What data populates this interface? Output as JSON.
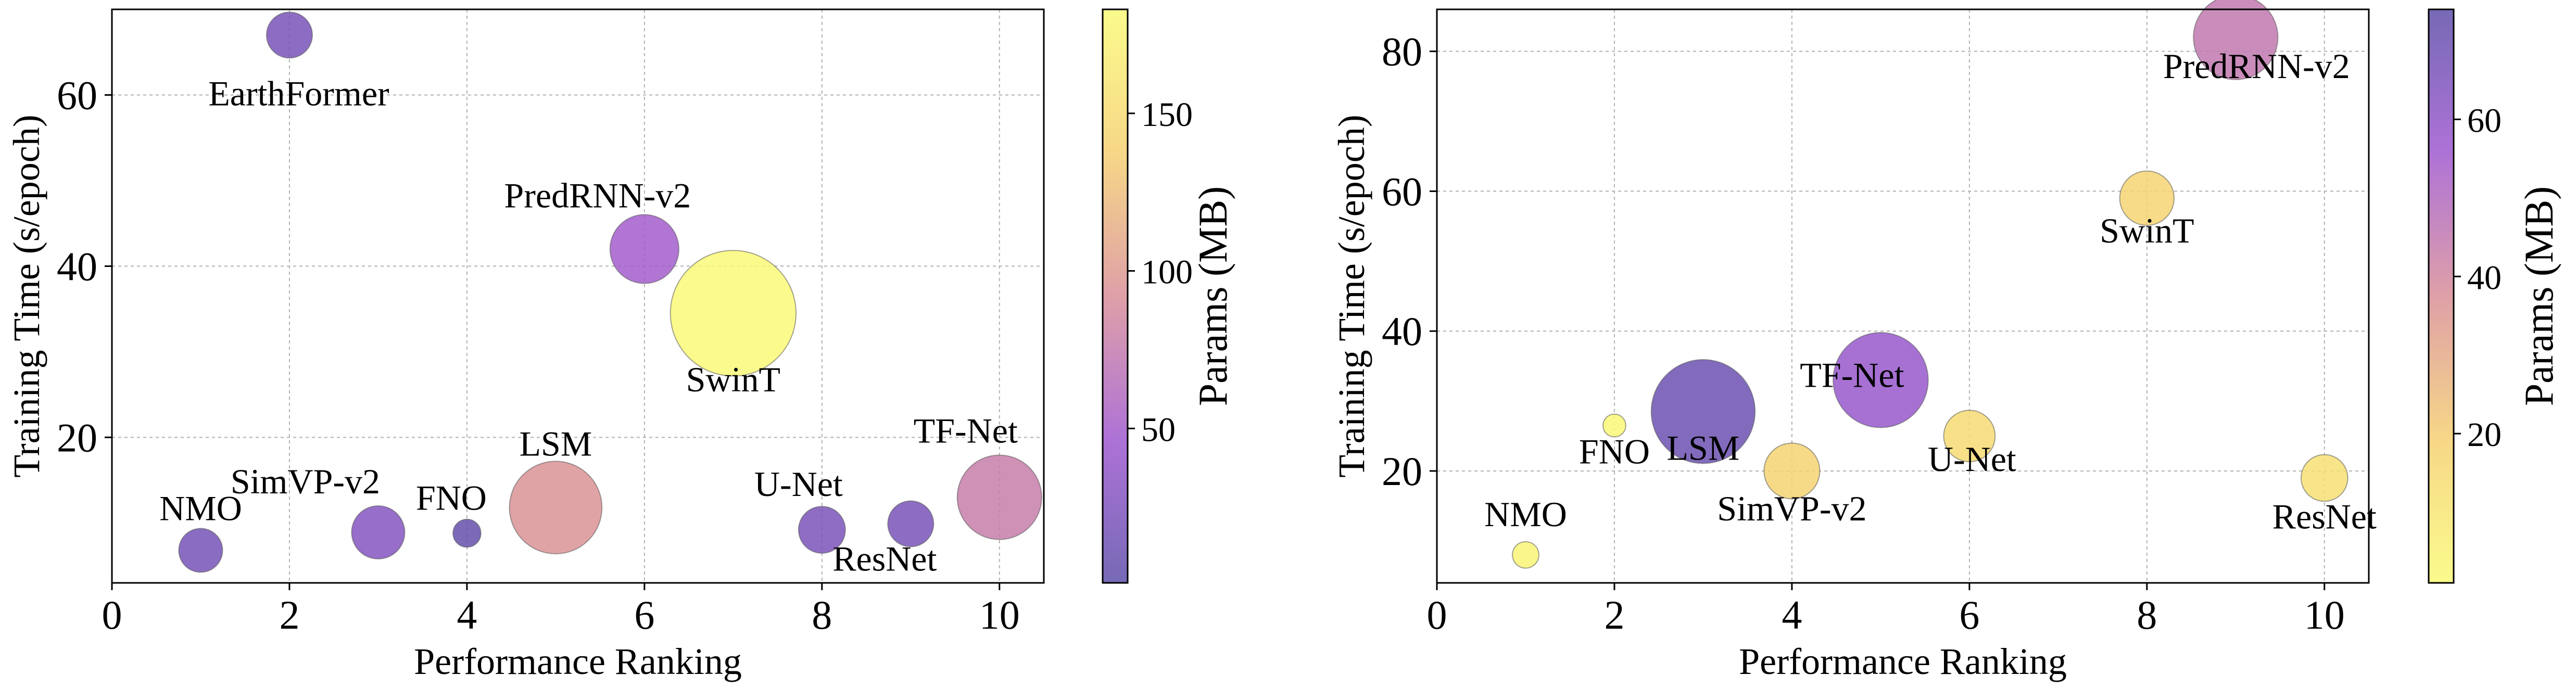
{
  "chart_data": [
    {
      "type": "scatter",
      "xlabel": "Performance Ranking",
      "ylabel": "Training Time (s/epoch)",
      "xlim": [
        0,
        10.5
      ],
      "ylim": [
        3,
        70
      ],
      "xticks": [
        0,
        2,
        4,
        6,
        8,
        10
      ],
      "yticks": [
        20,
        40,
        60
      ],
      "grid": true,
      "colorbar": {
        "label": "Params (MB)",
        "range": [
          1,
          183
        ],
        "ticks": [
          50,
          100,
          150
        ],
        "colormap": "plasma_r",
        "colors_low_to_high": [
          "#5e4fa8",
          "#9f59d0",
          "#d98f98",
          "#f5d072",
          "#fafa78"
        ]
      },
      "points": [
        {
          "name": "NMO",
          "x": 1,
          "y": 6.8,
          "params": 18
        },
        {
          "name": "EarthFormer",
          "x": 2,
          "y": 67,
          "params": 20
        },
        {
          "name": "SimVP-v2",
          "x": 3,
          "y": 8.9,
          "params": 28
        },
        {
          "name": "FNO",
          "x": 4,
          "y": 8.8,
          "params": 6
        },
        {
          "name": "LSM",
          "x": 5,
          "y": 11.8,
          "params": 95
        },
        {
          "name": "PredRNN-v2",
          "x": 6,
          "y": 42,
          "params": 50
        },
        {
          "name": "SwinT",
          "x": 7,
          "y": 34.5,
          "params": 182
        },
        {
          "name": "U-Net",
          "x": 8,
          "y": 9.2,
          "params": 21
        },
        {
          "name": "ResNet",
          "x": 9,
          "y": 9.9,
          "params": 20
        },
        {
          "name": "TF-Net",
          "x": 10,
          "y": 13,
          "params": 78
        }
      ]
    },
    {
      "type": "scatter",
      "xlabel": "Performance Ranking",
      "ylabel": "Training Time (s/epoch)",
      "xlim": [
        0,
        10.5
      ],
      "ylim": [
        4,
        86
      ],
      "xticks": [
        0,
        2,
        4,
        6,
        8,
        10
      ],
      "yticks": [
        20,
        40,
        60,
        80
      ],
      "grid": true,
      "colorbar": {
        "label": "Params (MB)",
        "range": [
          1,
          74
        ],
        "ticks": [
          20,
          40,
          60
        ],
        "colormap": "plasma",
        "colors_low_to_high": [
          "#fafa78",
          "#f5d072",
          "#d98f98",
          "#9f59d0",
          "#5e4fa8"
        ]
      },
      "points": [
        {
          "name": "NMO",
          "x": 1,
          "y": 8,
          "params": 3
        },
        {
          "name": "FNO",
          "x": 2,
          "y": 26.5,
          "params": 2
        },
        {
          "name": "LSM",
          "x": 3,
          "y": 28.5,
          "params": 70
        },
        {
          "name": "SimVP-v2",
          "x": 4,
          "y": 20,
          "params": 18
        },
        {
          "name": "TF-Net",
          "x": 5,
          "y": 33,
          "params": 58
        },
        {
          "name": "U-Net",
          "x": 6,
          "y": 25,
          "params": 15
        },
        {
          "name": "SwinT",
          "x": 8,
          "y": 59,
          "params": 17
        },
        {
          "name": "PredRNN-v2",
          "x": 9,
          "y": 82,
          "params": 45
        },
        {
          "name": "ResNet",
          "x": 10,
          "y": 19,
          "params": 12
        }
      ]
    }
  ]
}
